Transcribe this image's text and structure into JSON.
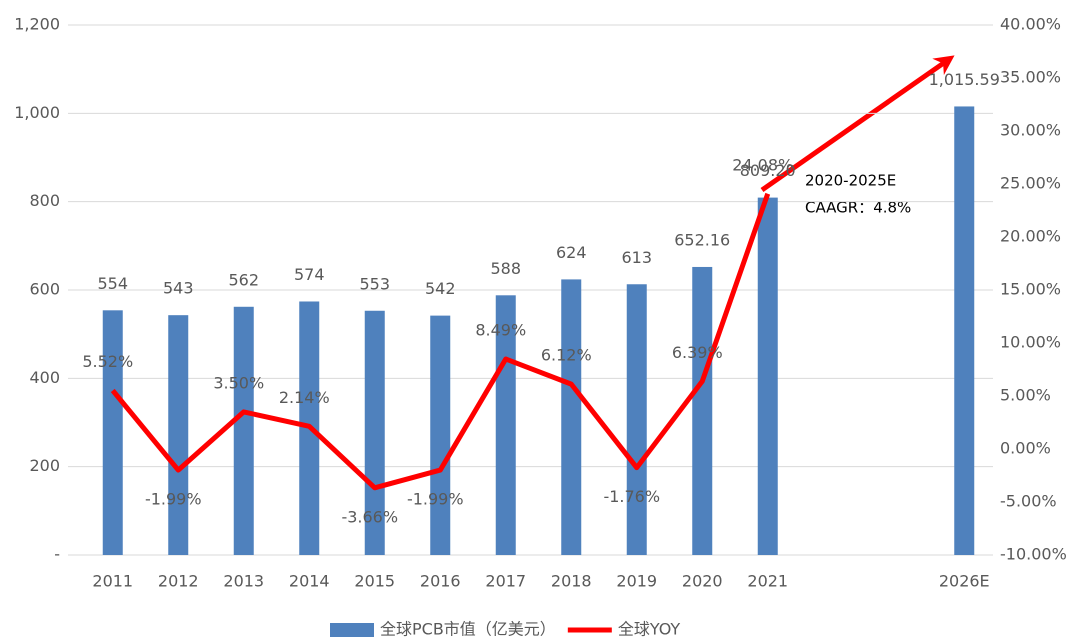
{
  "chart_data": {
    "type": "bar",
    "categories": [
      "2011",
      "2012",
      "2013",
      "2014",
      "2015",
      "2016",
      "2017",
      "2018",
      "2019",
      "2020",
      "2021",
      null,
      null,
      "2026E"
    ],
    "series": [
      {
        "name": "全球PCB市值（亿美元）",
        "type": "bar",
        "color": "#4f81bd",
        "values": [
          554,
          543,
          562,
          574,
          553,
          542,
          588,
          624,
          613,
          652.16,
          809.2,
          null,
          null,
          1015.59
        ],
        "value_labels": [
          "554",
          "543",
          "562",
          "574",
          "553",
          "542",
          "588",
          "624",
          "613",
          "652.16",
          "809.20",
          null,
          null,
          "1,015.59"
        ]
      },
      {
        "name": "全球YOY",
        "type": "line",
        "axis": "y2",
        "color": "#ff0000",
        "values": [
          5.52,
          -1.99,
          3.5,
          2.14,
          -3.66,
          -1.99,
          8.49,
          6.12,
          -1.76,
          6.39,
          24.08,
          null,
          null,
          null
        ],
        "value_labels": [
          "5.52%",
          "-1.99%",
          "3.50%",
          "2.14%",
          "-3.66%",
          "-1.99%",
          "8.49%",
          "6.12%",
          "-1.76%",
          "6.39%",
          "24.08%",
          null,
          null,
          null
        ]
      }
    ],
    "ylim": [
      0,
      1200
    ],
    "yticks": [
      {
        "value": 0,
        "label": "-"
      },
      200,
      400,
      600,
      800,
      {
        "value": 1000,
        "label": "1,000"
      },
      {
        "value": 1200,
        "label": "1,200"
      }
    ],
    "y2lim": [
      -10,
      40
    ],
    "y2ticks": [
      {
        "value": -10,
        "label": "-10.00%"
      },
      {
        "value": -5,
        "label": "-5.00%"
      },
      {
        "value": 0,
        "label": "0.00%"
      },
      {
        "value": 5,
        "label": "5.00%"
      },
      {
        "value": 10,
        "label": "10.00%"
      },
      {
        "value": 15,
        "label": "15.00%"
      },
      {
        "value": 20,
        "label": "20.00%"
      },
      {
        "value": 25,
        "label": "25.00%"
      },
      {
        "value": 30,
        "label": "30.00%"
      },
      {
        "value": 35,
        "label": "35.00%"
      },
      {
        "value": 40,
        "label": "40.00%"
      }
    ],
    "grid": true,
    "legend": "bottom",
    "annotations": [
      "2020-2025E",
      "CAAGR：4.8%"
    ]
  }
}
